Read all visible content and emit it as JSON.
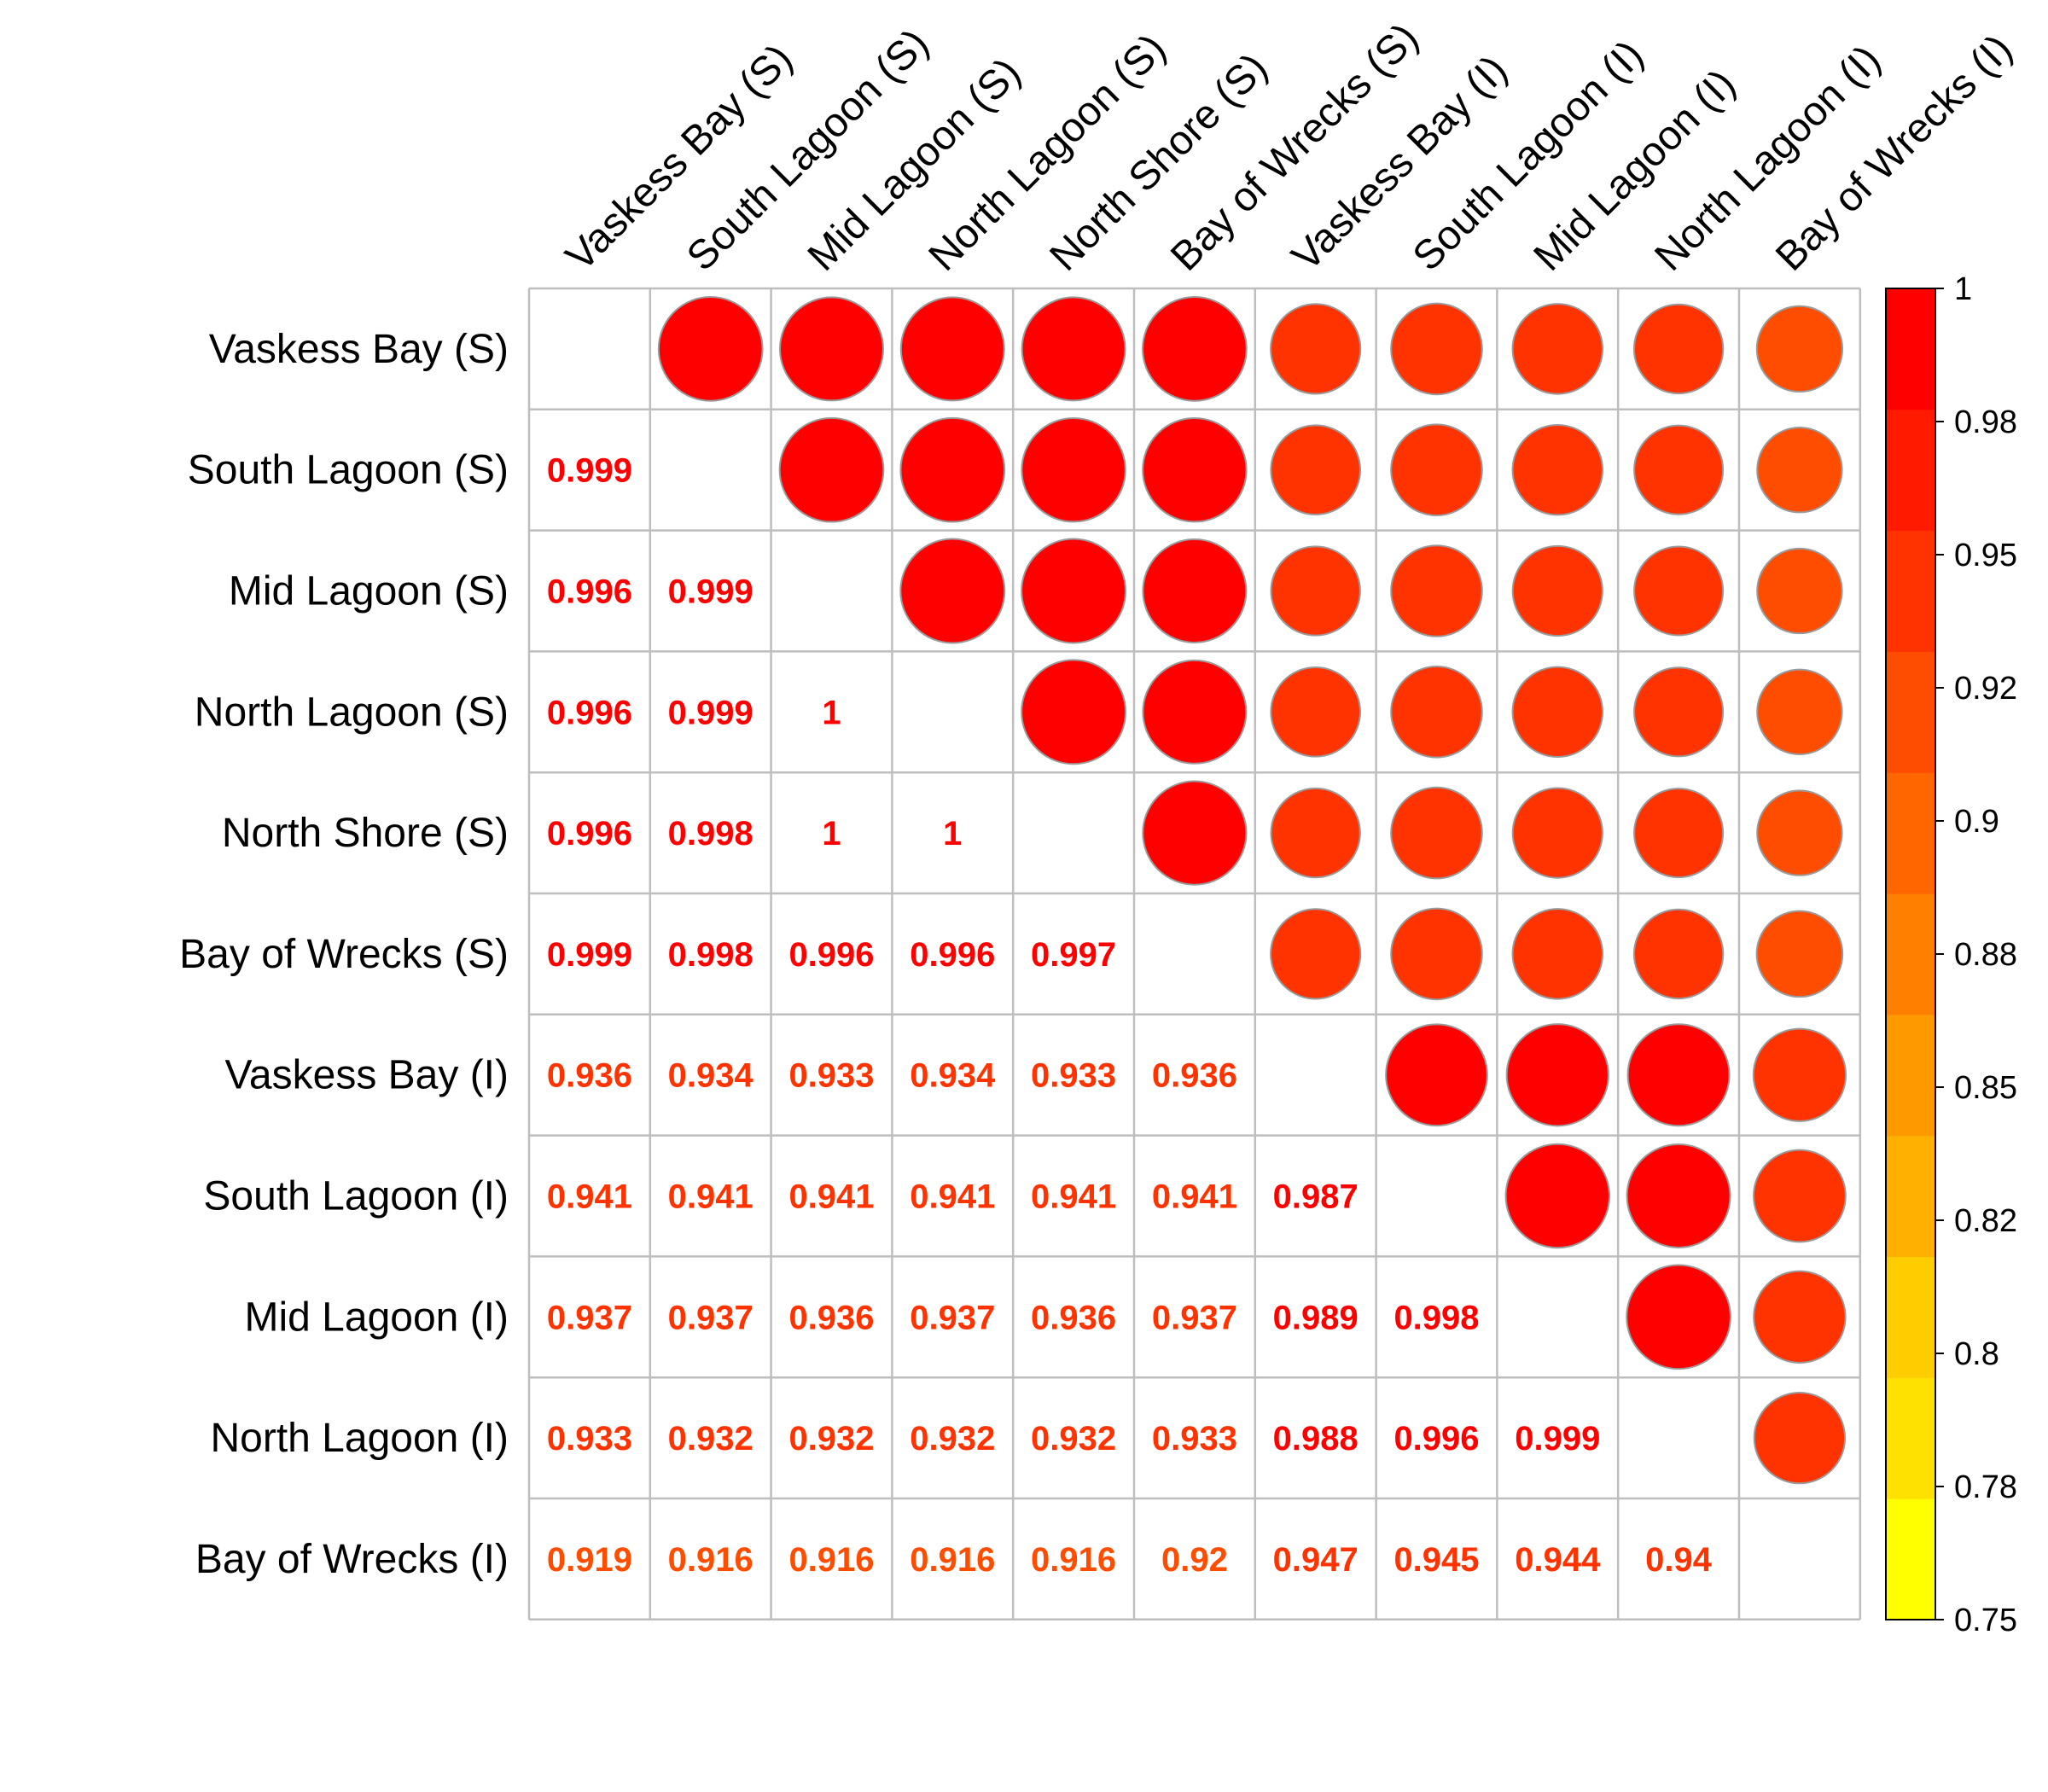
{
  "chart_data": {
    "type": "heatmap",
    "title": "",
    "labels": [
      "Vaskess Bay (S)",
      "South Lagoon (S)",
      "Mid Lagoon (S)",
      "North Lagoon (S)",
      "North Shore (S)",
      "Bay of Wrecks (S)",
      "Vaskess Bay (I)",
      "South Lagoon (I)",
      "Mid Lagoon (I)",
      "North Lagoon (I)",
      "Bay of Wrecks (I)"
    ],
    "matrix": [
      [
        null,
        0.999,
        0.996,
        0.996,
        0.996,
        0.999,
        0.936,
        0.941,
        0.937,
        0.933,
        0.919
      ],
      [
        0.999,
        null,
        0.999,
        0.999,
        0.998,
        0.998,
        0.934,
        0.941,
        0.937,
        0.932,
        0.916
      ],
      [
        0.996,
        0.999,
        null,
        1,
        1,
        0.996,
        0.933,
        0.941,
        0.936,
        0.932,
        0.916
      ],
      [
        0.996,
        0.999,
        1,
        null,
        1,
        0.996,
        0.934,
        0.941,
        0.937,
        0.932,
        0.916
      ],
      [
        0.996,
        0.998,
        1,
        1,
        null,
        0.997,
        0.933,
        0.941,
        0.936,
        0.932,
        0.916
      ],
      [
        0.999,
        0.998,
        0.996,
        0.996,
        0.997,
        null,
        0.936,
        0.941,
        0.937,
        0.933,
        0.92
      ],
      [
        0.936,
        0.934,
        0.933,
        0.934,
        0.933,
        0.936,
        null,
        0.987,
        0.989,
        0.988,
        0.947
      ],
      [
        0.941,
        0.941,
        0.941,
        0.941,
        0.941,
        0.941,
        0.987,
        null,
        0.998,
        0.996,
        0.945
      ],
      [
        0.937,
        0.937,
        0.936,
        0.937,
        0.936,
        0.937,
        0.989,
        0.998,
        null,
        0.999,
        0.944
      ],
      [
        0.933,
        0.932,
        0.932,
        0.932,
        0.932,
        0.933,
        0.988,
        0.996,
        0.999,
        null,
        0.94
      ],
      [
        0.919,
        0.916,
        0.916,
        0.916,
        0.916,
        0.92,
        0.947,
        0.945,
        0.944,
        0.94,
        null
      ]
    ],
    "upper_triangle": "circles",
    "lower_triangle": "numbers",
    "color_scale": {
      "range": [
        0.75,
        1
      ],
      "ticks": [
        1,
        0.98,
        0.95,
        0.92,
        0.9,
        0.88,
        0.85,
        0.82,
        0.8,
        0.78,
        0.75
      ],
      "colors": [
        "#FFFF00",
        "#FFE100",
        "#FFCC00",
        "#FFB000",
        "#FF9900",
        "#FF8000",
        "#FF6600",
        "#FF4D00",
        "#FF3300",
        "#FF1A00",
        "#FF0000"
      ]
    },
    "legend": "right",
    "grid": true
  }
}
